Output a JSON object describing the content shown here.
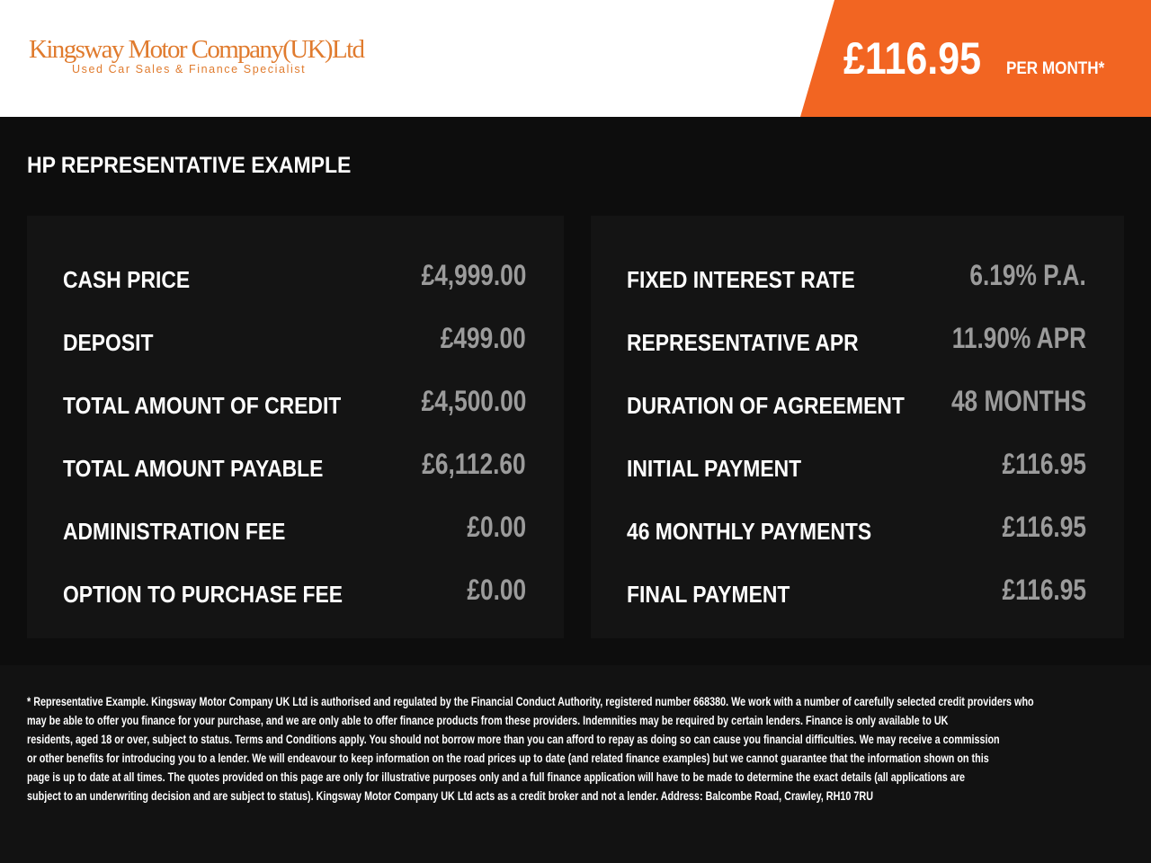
{
  "header": {
    "logo_name": "Kingsway Motor Company(UK)Ltd",
    "logo_tagline": "Used Car Sales & Finance Specialist",
    "price": "£116.95",
    "price_suffix": "PER MONTH*",
    "accent_color": "#f26522"
  },
  "title": "HP REPRESENTATIVE EXAMPLE",
  "left_panel": [
    {
      "label": "CASH PRICE",
      "value": "£4,999.00"
    },
    {
      "label": "DEPOSIT",
      "value": "£499.00"
    },
    {
      "label": "TOTAL AMOUNT OF CREDIT",
      "value": "£4,500.00"
    },
    {
      "label": "TOTAL AMOUNT PAYABLE",
      "value": "£6,112.60"
    },
    {
      "label": "ADMINISTRATION FEE",
      "value": "£0.00"
    },
    {
      "label": "OPTION TO PURCHASE FEE",
      "value": "£0.00"
    }
  ],
  "right_panel": [
    {
      "label": "FIXED INTEREST RATE",
      "value": "6.19% P.A."
    },
    {
      "label": "REPRESENTATIVE APR",
      "value": "11.90% APR"
    },
    {
      "label": "DURATION OF AGREEMENT",
      "value": "48 MONTHS"
    },
    {
      "label": "INITIAL PAYMENT",
      "value": "£116.95"
    },
    {
      "label": "46 MONTHLY PAYMENTS",
      "value": "£116.95"
    },
    {
      "label": "FINAL PAYMENT",
      "value": "£116.95"
    }
  ],
  "disclaimer": [
    "* Representative Example. Kingsway Motor Company UK Ltd is authorised and regulated by the Financial Conduct Authority, registered number 668380. We work with a number of carefully selected credit providers who",
    "may be able to offer you finance for your purchase, and we are only able to offer finance products from these providers. Indemnities may be required by certain lenders. Finance is only available to UK",
    "residents, aged 18 or over, subject to status. Terms and Conditions apply. You should not borrow more than you can afford to repay as doing so can cause you financial difficulties. We may receive a commission",
    "or other benefits for introducing you to a lender. We will endeavour to keep information on the road prices up to date (and related finance examples) but we cannot guarantee that the information shown on this",
    "page is up to date at all times. The quotes provided on this page are only for illustrative purposes only and a full finance application will have to be made to determine the exact details (all applications are",
    "subject to an underwriting decision and are subject to status). Kingsway Motor Company UK Ltd acts as a credit broker and not a lender. Address: Balcombe Road, Crawley, RH10 7RU"
  ]
}
